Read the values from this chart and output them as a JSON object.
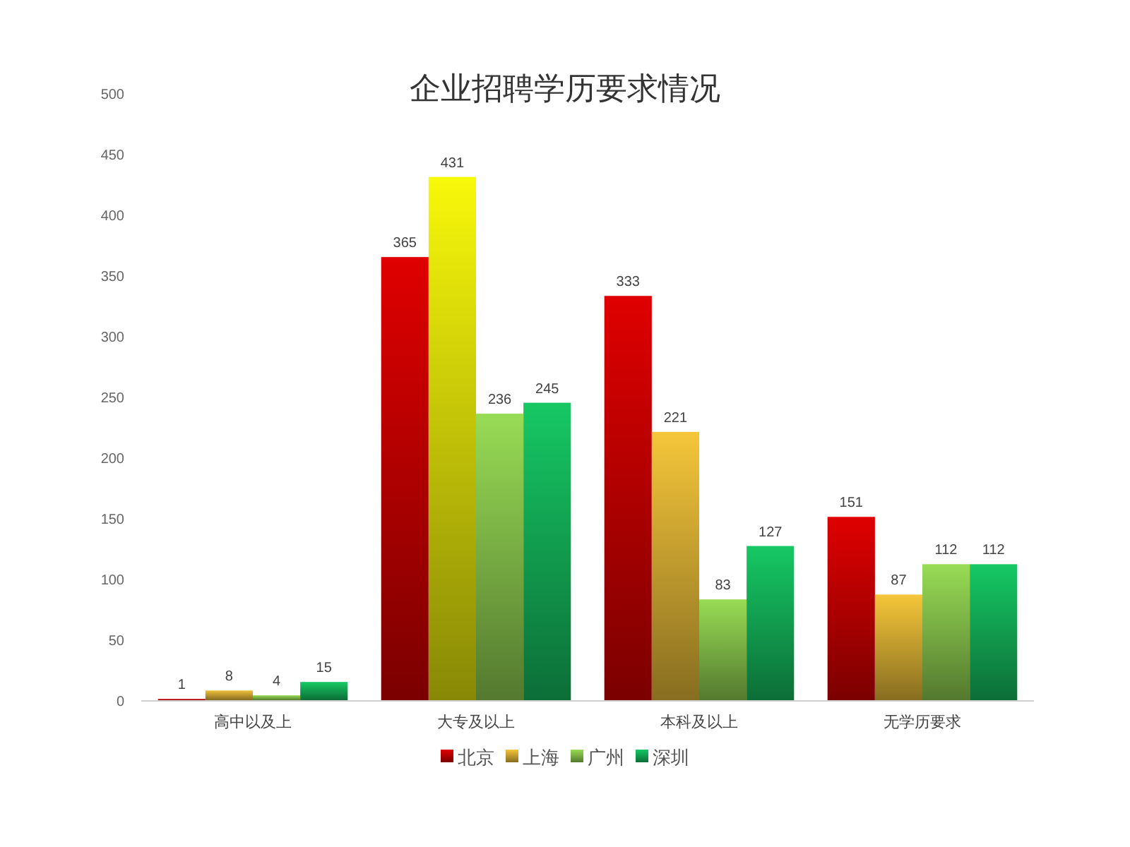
{
  "chart_data": {
    "type": "bar",
    "title": "企业招聘学历要求情况",
    "categories": [
      "高中以及上",
      "大专及以上",
      "本科及以上",
      "无学历要求"
    ],
    "series": [
      {
        "name": "北京",
        "color": "#e00000",
        "values": [
          1,
          365,
          333,
          151
        ]
      },
      {
        "name": "上海",
        "color": "#f5c63a",
        "colors": [
          "#f0c03a",
          "#f8f80a",
          "#f5c63a",
          "#f5c63a"
        ],
        "values": [
          8,
          431,
          221,
          87
        ]
      },
      {
        "name": "广州",
        "color": "#98dc55",
        "values": [
          4,
          236,
          83,
          112
        ]
      },
      {
        "name": "深圳",
        "color": "#16c864",
        "values": [
          15,
          245,
          127,
          112
        ]
      }
    ],
    "ylim": [
      0,
      500
    ],
    "yticks": [
      0,
      50,
      100,
      150,
      200,
      250,
      300,
      350,
      400,
      450,
      500
    ],
    "data_labels": true,
    "legend": "bottom"
  }
}
